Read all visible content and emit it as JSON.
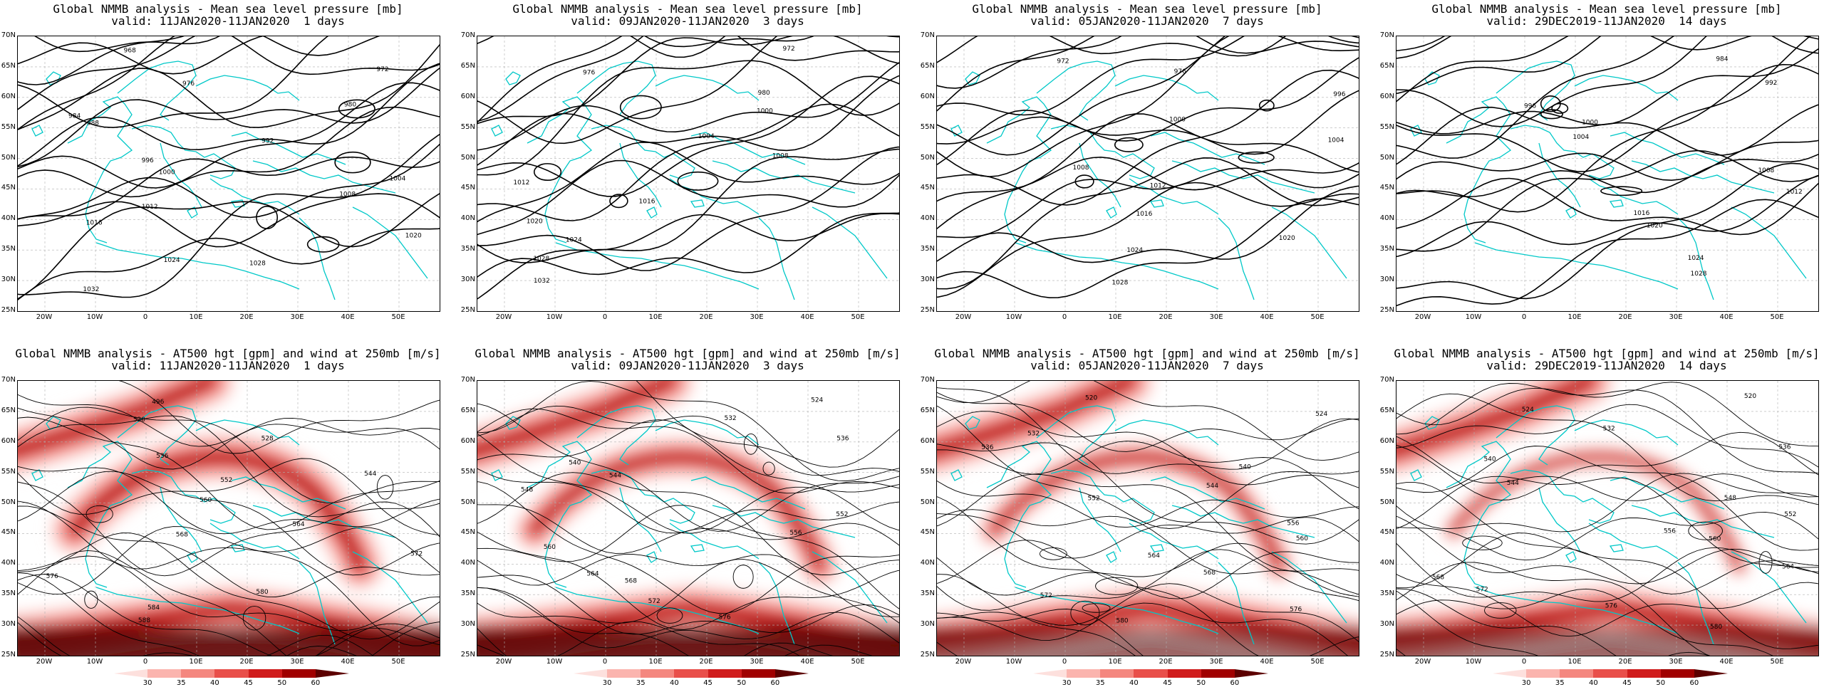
{
  "top_row": [
    {
      "line1": "Global NMMB analysis - Mean sea level pressure [mb]",
      "line2": "valid: 11JAN2020-11JAN2020  1 days"
    },
    {
      "line1": "Global NMMB analysis - Mean sea level pressure [mb]",
      "line2": "valid: 09JAN2020-11JAN2020  3 days"
    },
    {
      "line1": "Global NMMB analysis - Mean sea level pressure [mb]",
      "line2": "valid: 05JAN2020-11JAN2020  7 days"
    },
    {
      "line1": "Global NMMB analysis - Mean sea level pressure [mb]",
      "line2": "valid: 29DEC2019-11JAN2020  14 days"
    }
  ],
  "bottom_row": [
    {
      "line1": "Global NMMB analysis - AT500 hgt [gpm] and wind at 250mb [m/s]",
      "line2": "valid: 11JAN2020-11JAN2020  1 days"
    },
    {
      "line1": "Global NMMB analysis - AT500 hgt [gpm] and wind at 250mb [m/s]",
      "line2": "valid: 09JAN2020-11JAN2020  3 days"
    },
    {
      "line1": "Global NMMB analysis - AT500 hgt [gpm] and wind at 250mb [m/s]",
      "line2": "valid: 05JAN2020-11JAN2020  7 days"
    },
    {
      "line1": "Global NMMB analysis - AT500 hgt [gpm] and wind at 250mb [m/s]",
      "line2": "valid: 29DEC2019-11JAN2020  14 days"
    }
  ],
  "lat_labels": [
    "70N",
    "65N",
    "60N",
    "55N",
    "50N",
    "45N",
    "40N",
    "35N",
    "30N",
    "25N"
  ],
  "lon_labels": [
    "20W",
    "10W",
    "0",
    "10E",
    "20E",
    "30E",
    "40E",
    "50E"
  ],
  "colorbar": {
    "ticks": [
      "30",
      "35",
      "40",
      "45",
      "50",
      "60"
    ],
    "colors": [
      "#fde0dd",
      "#fbb4ae",
      "#f4877f",
      "#e94f4a",
      "#d01c1c",
      "#a00000",
      "#5c0000"
    ]
  },
  "colors": {
    "coast": "#00c8c8",
    "contour": "#000000",
    "grid": "#b0b0b0"
  },
  "pressure_labels": [
    [
      "968",
      "972",
      "976",
      "980",
      "984",
      "988",
      "992",
      "996",
      "1000",
      "1004",
      "1008",
      "1012",
      "1016",
      "1020",
      "1024",
      "1028",
      "1032"
    ],
    [
      "972",
      "976",
      "980",
      "1000",
      "1004",
      "1008",
      "1012",
      "1016",
      "1020",
      "1024",
      "1028",
      "1032"
    ],
    [
      "972",
      "976",
      "996",
      "1000",
      "1004",
      "1008",
      "1012",
      "1016",
      "1020",
      "1024",
      "1028"
    ],
    [
      "984",
      "992",
      "996",
      "1000",
      "1004",
      "1008",
      "1012",
      "1016",
      "1020",
      "1024",
      "1028"
    ]
  ],
  "height_labels": [
    [
      "496",
      "520",
      "528",
      "536",
      "544",
      "552",
      "560",
      "564",
      "568",
      "572",
      "576",
      "580",
      "584",
      "588"
    ],
    [
      "524",
      "532",
      "536",
      "540",
      "544",
      "548",
      "552",
      "556",
      "560",
      "564",
      "568",
      "572",
      "576"
    ],
    [
      "520",
      "524",
      "532",
      "536",
      "540",
      "544",
      "552",
      "556",
      "560",
      "564",
      "568",
      "572",
      "576",
      "580"
    ],
    [
      "520",
      "524",
      "532",
      "536",
      "540",
      "544",
      "548",
      "552",
      "556",
      "560",
      "564",
      "568",
      "572",
      "576",
      "580"
    ]
  ]
}
